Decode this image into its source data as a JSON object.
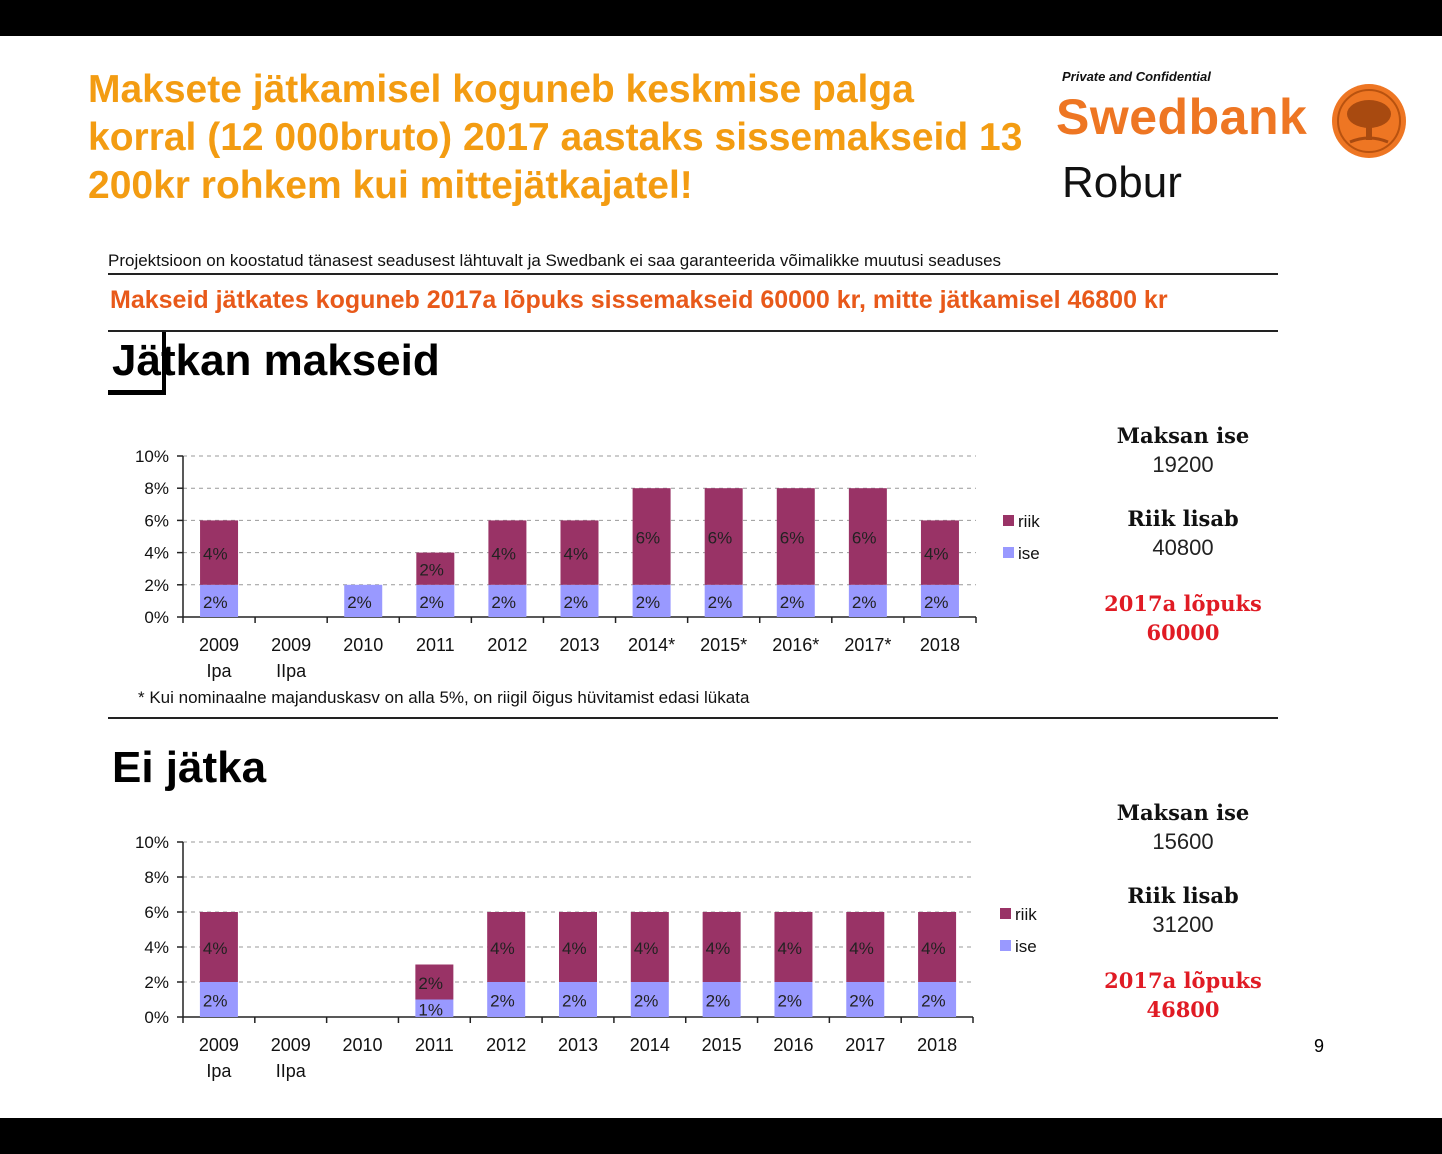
{
  "headline": "Maksete jätkamisel koguneb keskmise palga korral (12 000bruto) 2017 aastaks sissemakseid 13 200kr rohkem kui mittejätkajatel!",
  "brand": {
    "confidential": "Private and Confidential",
    "name": "Swedbank",
    "sub": "Robur"
  },
  "disclaimer": "Projektsioon on koostatud tänasest seadusest lähtuvalt ja Swedbank ei saa garanteerida võimalikke muutusi seaduses",
  "summary": "Makseid jätkates koguneb 2017a lõpuks sissemakseid 60000 kr, mitte jätkamisel 46800 kr",
  "footnote": "* Kui nominaalne majanduskasv on alla 5%, on riigil õigus hüvitamist edasi lükata",
  "page_number": "9",
  "colors": {
    "riik": "#993366",
    "ise": "#9999ff",
    "headline": "#f39c12",
    "summary": "#e8591a",
    "accent_red": "#e01b24",
    "brand": "#ee7623"
  },
  "sections": [
    {
      "title": "Jätkan makseid",
      "panel": {
        "label1": "Maksan ise",
        "value1": "19200",
        "label2": "Riik lisab",
        "value2": "40800",
        "total_label": "2017a lõpuks",
        "total_value": "60000"
      }
    },
    {
      "title": "Ei jätka",
      "panel": {
        "label1": "Maksan ise",
        "value1": "15600",
        "label2": "Riik lisab",
        "value2": "31200",
        "total_label": "2017a lõpuks",
        "total_value": "46800"
      }
    }
  ],
  "chart_data": [
    {
      "type": "bar",
      "stacked": true,
      "title": "Jätkan makseid",
      "categories": [
        [
          "2009",
          "Ipa"
        ],
        [
          "2009",
          "IIpa"
        ],
        [
          "2010"
        ],
        [
          "2011"
        ],
        [
          "2012"
        ],
        [
          "2013"
        ],
        [
          "2014*"
        ],
        [
          "2015*"
        ],
        [
          "2016*"
        ],
        [
          "2017*"
        ],
        [
          "2018"
        ]
      ],
      "series": [
        {
          "name": "ise",
          "values": [
            2,
            0,
            2,
            2,
            2,
            2,
            2,
            2,
            2,
            2,
            2
          ],
          "labels": [
            "2%",
            "",
            "2%",
            "2%",
            "2%",
            "2%",
            "2%",
            "2%",
            "2%",
            "2%",
            "2%"
          ]
        },
        {
          "name": "riik",
          "values": [
            4,
            0,
            0,
            2,
            4,
            4,
            6,
            6,
            6,
            6,
            4
          ],
          "labels": [
            "4%",
            "",
            "",
            "2%",
            "4%",
            "4%",
            "6%",
            "6%",
            "6%",
            "6%",
            "4%"
          ]
        }
      ],
      "legend": [
        "riik",
        "ise"
      ],
      "legend_position": "right",
      "yticks": [
        "0%",
        "2%",
        "4%",
        "6%",
        "8%",
        "10%"
      ],
      "ylim": [
        0,
        10
      ],
      "grid": true
    },
    {
      "type": "bar",
      "stacked": true,
      "title": "Ei jätka",
      "categories": [
        [
          "2009",
          "Ipa"
        ],
        [
          "2009",
          "IIpa"
        ],
        [
          "2010"
        ],
        [
          "2011"
        ],
        [
          "2012"
        ],
        [
          "2013"
        ],
        [
          "2014"
        ],
        [
          "2015"
        ],
        [
          "2016"
        ],
        [
          "2017"
        ],
        [
          "2018"
        ]
      ],
      "series": [
        {
          "name": "ise",
          "values": [
            2,
            0,
            0,
            1,
            2,
            2,
            2,
            2,
            2,
            2,
            2
          ],
          "labels": [
            "2%",
            "",
            "",
            "1%",
            "2%",
            "2%",
            "2%",
            "2%",
            "2%",
            "2%",
            "2%"
          ]
        },
        {
          "name": "riik",
          "values": [
            4,
            0,
            0,
            2,
            4,
            4,
            4,
            4,
            4,
            4,
            4
          ],
          "labels": [
            "4%",
            "",
            "",
            "2%",
            "4%",
            "4%",
            "4%",
            "4%",
            "4%",
            "4%",
            "4%"
          ]
        }
      ],
      "legend": [
        "riik",
        "ise"
      ],
      "legend_position": "right",
      "yticks": [
        "0%",
        "2%",
        "4%",
        "6%",
        "8%",
        "10%"
      ],
      "ylim": [
        0,
        10
      ],
      "grid": true
    }
  ]
}
